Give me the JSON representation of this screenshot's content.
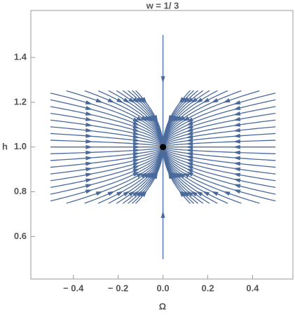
{
  "chart_data": {
    "type": "stream",
    "title": "w = 1/ 3",
    "x_label": "Ω",
    "y_label": "h",
    "xlim": [
      -0.59,
      0.58
    ],
    "ylim": [
      0.41,
      1.61
    ],
    "xticks": [
      {
        "value": -0.4,
        "label": "− 0.4"
      },
      {
        "value": -0.2,
        "label": "− 0.2"
      },
      {
        "value": 0,
        "label": "0.0"
      },
      {
        "value": 0.2,
        "label": "0.2"
      },
      {
        "value": 0.4,
        "label": "0.4"
      }
    ],
    "yticks": [
      0.6,
      0.8,
      {
        "value": 1,
        "label": "1.0"
      },
      1.2,
      1.4
    ],
    "color": "#4a6a9c",
    "points": {
      "x": [
        0
      ],
      "y": [
        1
      ]
    }
  }
}
